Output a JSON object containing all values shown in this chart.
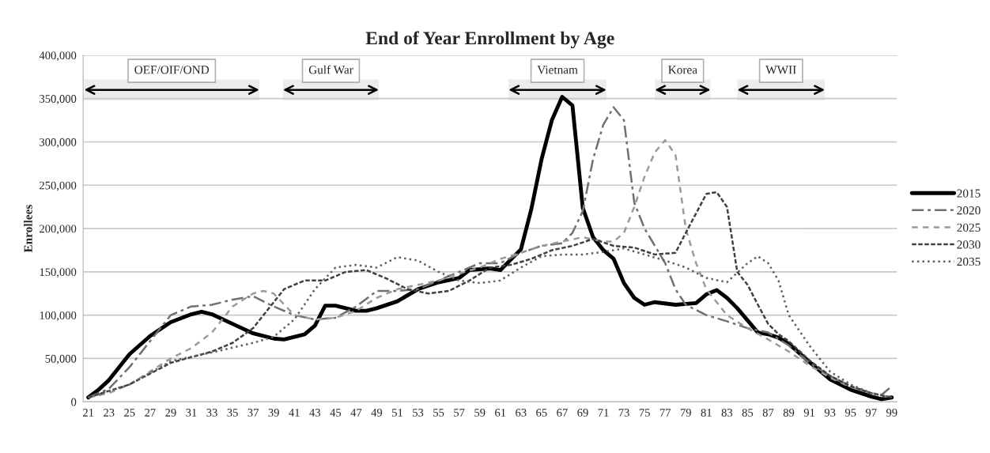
{
  "chart_data": {
    "type": "line",
    "title": "End of Year Enrollment by Age",
    "ylabel": "Enrollees",
    "xlim": [
      20.5,
      99.5
    ],
    "xticks": [
      21,
      23,
      25,
      27,
      29,
      31,
      33,
      35,
      37,
      39,
      41,
      43,
      45,
      47,
      49,
      51,
      53,
      55,
      57,
      59,
      61,
      63,
      65,
      67,
      69,
      71,
      73,
      75,
      77,
      79,
      81,
      83,
      85,
      87,
      89,
      91,
      93,
      95,
      97,
      99
    ],
    "ylim": [
      0,
      400000
    ],
    "yticks": [
      {
        "value": 0,
        "label": "0"
      },
      {
        "value": 50000,
        "label": "50,000"
      },
      {
        "value": 100000,
        "label": "100,000"
      },
      {
        "value": 150000,
        "label": "150,000"
      },
      {
        "value": 200000,
        "label": "200,000"
      },
      {
        "value": 250000,
        "label": "250,000"
      },
      {
        "value": 300000,
        "label": "300,000"
      },
      {
        "value": 350000,
        "label": "350,000"
      },
      {
        "value": 400000,
        "label": "400,000"
      }
    ],
    "grid": "y",
    "legend": "right",
    "bands": [
      {
        "axis": "x",
        "from": 20.6,
        "to": 37.6,
        "label": "OEF/OIF/OND",
        "color": "#ececec"
      },
      {
        "axis": "x",
        "from": 39.9,
        "to": 49.2,
        "label": "Gulf War",
        "color": "#ececec"
      },
      {
        "axis": "x",
        "from": 61.8,
        "to": 71.3,
        "label": "Vietnam",
        "color": "#ececec"
      },
      {
        "axis": "x",
        "from": 76,
        "to": 81.4,
        "label": "Korea",
        "color": "#ececec"
      },
      {
        "axis": "x",
        "from": 84,
        "to": 92.5,
        "label": "WWII",
        "color": "#ececec"
      }
    ],
    "series": [
      {
        "name": "2015",
        "color": "#000000",
        "line_style": "solid",
        "x": [
          21,
          22,
          23,
          25,
          27,
          29,
          31,
          32,
          33,
          35,
          37,
          39,
          40,
          41,
          42,
          43,
          44,
          45,
          47,
          48,
          49,
          51,
          53,
          55,
          57,
          58,
          60,
          61,
          63,
          64,
          65,
          66,
          67,
          68,
          69,
          70,
          71,
          72,
          73,
          74,
          75,
          76,
          78,
          80,
          81,
          82,
          83,
          84,
          86,
          87,
          88,
          89,
          91,
          93,
          95,
          97,
          98,
          99
        ],
        "values": [
          5000,
          14000,
          25000,
          55000,
          76000,
          92000,
          101000,
          104000,
          101000,
          90000,
          79000,
          73000,
          72000,
          75000,
          78000,
          88000,
          111000,
          111000,
          105000,
          105000,
          108000,
          116000,
          130000,
          138000,
          143000,
          152000,
          154000,
          152000,
          176000,
          222000,
          280000,
          325000,
          352000,
          342000,
          224000,
          190000,
          175000,
          165000,
          137000,
          120000,
          112000,
          115000,
          112000,
          114000,
          124000,
          129000,
          120000,
          108000,
          80000,
          78000,
          74000,
          67000,
          46000,
          26000,
          14000,
          6000,
          3000,
          5000
        ]
      },
      {
        "name": "2020",
        "color": "#707070",
        "line_style": "dashed",
        "x": [
          21,
          23,
          25,
          27,
          29,
          31,
          33,
          35,
          37,
          39,
          41,
          43,
          45,
          47,
          49,
          51,
          53,
          55,
          57,
          59,
          61,
          63,
          65,
          67,
          68,
          69,
          70,
          71,
          72,
          73,
          74,
          75,
          76,
          77,
          78,
          79,
          81,
          83,
          85,
          87,
          89,
          91,
          93,
          95,
          97,
          98,
          99
        ],
        "values": [
          5000,
          15000,
          40000,
          70000,
          100000,
          110000,
          112000,
          118000,
          122000,
          110000,
          100000,
          95000,
          97000,
          110000,
          128000,
          128000,
          130000,
          140000,
          150000,
          160000,
          160000,
          172000,
          180000,
          183000,
          195000,
          220000,
          280000,
          320000,
          340000,
          325000,
          230000,
          200000,
          180000,
          160000,
          130000,
          112000,
          100000,
          93000,
          85000,
          80000,
          65000,
          45000,
          30000,
          18000,
          10000,
          8000,
          18000
        ]
      },
      {
        "name": "2025",
        "color": "#9a9a9a",
        "line_style": "dashed",
        "x": [
          21,
          23,
          25,
          27,
          29,
          31,
          33,
          35,
          37,
          38,
          39,
          41,
          43,
          45,
          47,
          49,
          51,
          53,
          55,
          57,
          59,
          61,
          63,
          65,
          67,
          69,
          71,
          72,
          73,
          74,
          75,
          76,
          77,
          78,
          79,
          80,
          81,
          82,
          83,
          85,
          87,
          89,
          91,
          93,
          95,
          97,
          98,
          99
        ],
        "values": [
          5000,
          10000,
          20000,
          35000,
          50000,
          62000,
          80000,
          110000,
          125000,
          128000,
          125000,
          100000,
          95000,
          97000,
          105000,
          120000,
          130000,
          135000,
          140000,
          148000,
          155000,
          165000,
          172000,
          180000,
          185000,
          190000,
          185000,
          185000,
          195000,
          225000,
          260000,
          288000,
          302000,
          285000,
          200000,
          160000,
          130000,
          115000,
          100000,
          85000,
          72000,
          58000,
          42000,
          28000,
          17000,
          10000,
          7000,
          5000
        ]
      },
      {
        "name": "2030",
        "color": "#404040",
        "line_style": "dashed",
        "x": [
          21,
          25,
          29,
          33,
          35,
          37,
          39,
          40,
          42,
          44,
          46,
          48,
          50,
          52,
          54,
          56,
          58,
          60,
          62,
          64,
          66,
          68,
          70,
          72,
          74,
          76,
          78,
          79,
          81,
          82,
          83,
          84,
          85,
          86,
          87,
          88,
          89,
          91,
          93,
          95,
          97,
          99
        ],
        "values": [
          5000,
          20000,
          45000,
          58000,
          68000,
          85000,
          115000,
          130000,
          140000,
          140000,
          150000,
          152000,
          142000,
          130000,
          125000,
          128000,
          140000,
          155000,
          158000,
          165000,
          175000,
          180000,
          188000,
          180000,
          178000,
          170000,
          172000,
          195000,
          240000,
          242000,
          225000,
          150000,
          135000,
          112000,
          90000,
          78000,
          70000,
          48000,
          30000,
          18000,
          10000,
          5000
        ]
      },
      {
        "name": "2035",
        "color": "#606060",
        "line_style": "dotted",
        "x": [
          21,
          25,
          29,
          33,
          37,
          39,
          41,
          43,
          45,
          47,
          49,
          51,
          53,
          55,
          57,
          59,
          61,
          63,
          65,
          67,
          69,
          71,
          73,
          75,
          77,
          79,
          81,
          83,
          85,
          86,
          87,
          88,
          89,
          91,
          93,
          95,
          97,
          99
        ],
        "values": [
          5000,
          20000,
          47000,
          57000,
          68000,
          75000,
          95000,
          130000,
          155000,
          158000,
          155000,
          167000,
          163000,
          150000,
          140000,
          137000,
          140000,
          155000,
          168000,
          170000,
          170000,
          173000,
          177000,
          170000,
          163000,
          155000,
          143000,
          138000,
          160000,
          168000,
          160000,
          140000,
          100000,
          65000,
          35000,
          20000,
          10000,
          5000
        ]
      }
    ]
  }
}
